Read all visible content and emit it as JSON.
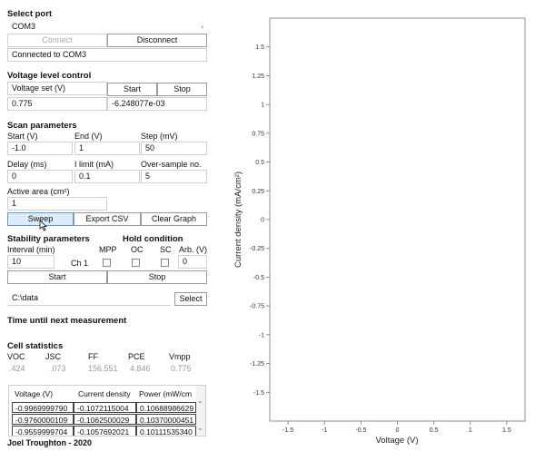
{
  "select_port": {
    "heading": "Select port",
    "port_value": "COM3",
    "connect_label": "Connect",
    "disconnect_label": "Disconnect",
    "status_text": "Connected to COM3"
  },
  "voltage_control": {
    "heading": "Voltage level control",
    "voltage_set_label": "Voltage set (V)",
    "start_label": "Start",
    "stop_label": "Stop",
    "voltage_value": "0.775",
    "readout": "-6.248077e-03"
  },
  "scan": {
    "heading": "Scan parameters",
    "start_label": "Start (V)",
    "end_label": "End (V)",
    "step_label": "Step (mV)",
    "start_value": "-1.0",
    "end_value": "1",
    "step_value": "50",
    "delay_label": "Delay (ms)",
    "ilimit_label": "I limit (mA)",
    "oversample_label": "Over-sample no.",
    "delay_value": "0",
    "ilimit_value": "0.1",
    "oversample_value": "5",
    "area_label": "Active area (cm²)",
    "area_value": "1",
    "sweep_label": "Sweep",
    "export_label": "Export CSV",
    "clear_label": "Clear Graph"
  },
  "stability": {
    "heading": "Stability parameters",
    "hold_heading": "Hold condition",
    "interval_label": "Interval (min)",
    "mpp_label": "MPP",
    "oc_label": "OC",
    "sc_label": "SC",
    "arb_label": "Arb. (V)",
    "interval_value": "10",
    "channel_label": "Ch 1",
    "arb_value": "0",
    "start_label": "Start",
    "stop_label": "Stop",
    "folder_value": "C:\\data",
    "select_label": "Select"
  },
  "time_until": {
    "heading": "Time until next measurement"
  },
  "cell_stats": {
    "heading": "Cell statistics",
    "labels": [
      "VOC",
      "JSC",
      "FF",
      "PCE",
      "Vmpp"
    ],
    "values": [
      ".424",
      ".073",
      "156.551",
      "4.846",
      "0.775"
    ]
  },
  "table": {
    "headers": [
      "Voltage (V)",
      "Current density",
      "Power (mW/cm"
    ],
    "rows": [
      [
        "-0.9969999790",
        "-0.1072115004",
        "0.10688986629"
      ],
      [
        "-0.9760000109",
        "-0.1062500029",
        "0.10370000451"
      ],
      [
        "-0.9559999704",
        "-0.1057692021",
        "0.10111535340"
      ]
    ]
  },
  "footer": {
    "credit": "Joel Troughton - 2020"
  },
  "chart_data": {
    "type": "line",
    "xlabel": "Voltage (V)",
    "ylabel": "Current density (mA/cm²)",
    "xlim": [
      -1.75,
      1.75
    ],
    "ylim": [
      -1.75,
      1.75
    ],
    "xticks": [
      -1.5,
      -1,
      -0.5,
      0,
      0.5,
      1,
      1.5
    ],
    "xtick_labels": [
      "-1.5",
      "-1",
      "-0.5",
      "0",
      "0.5",
      "1",
      "1.5"
    ],
    "yticks": [
      1.5,
      1.25,
      1,
      0.75,
      0.5,
      0.25,
      0,
      -0.25,
      -0.5,
      -0.75,
      -1,
      -1.25,
      -1.5
    ],
    "ytick_labels": [
      "1.5",
      "1.25",
      "1",
      "0.75",
      "0.5",
      "0.25",
      "0",
      "-0.25",
      "-0.5",
      "-0.75",
      "-1",
      "-1.25",
      "-1.5"
    ],
    "series": [],
    "grid": false
  }
}
